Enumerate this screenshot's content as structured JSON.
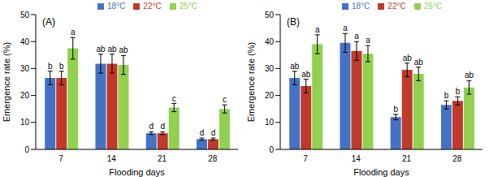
{
  "chart_data": [
    {
      "type": "bar",
      "title": "(A)",
      "x_label": "Flooding days",
      "y_label": "Emergence rate (%)",
      "categories": [
        "7",
        "14",
        "21",
        "28"
      ],
      "series": [
        {
          "name": "18°C",
          "color": "#4472c4",
          "values": [
            26.5,
            31.8,
            6,
            3.8
          ],
          "errors": [
            2.5,
            3.5,
            0.5,
            0.4
          ],
          "labels": [
            "b",
            "ab",
            "d",
            "d"
          ]
        },
        {
          "name": "22°C",
          "color": "#c0392b",
          "values": [
            26.5,
            31.8,
            6,
            3.8
          ],
          "errors": [
            2.5,
            3.5,
            0.5,
            0.4
          ],
          "labels": [
            "b",
            "ab",
            "d",
            "d"
          ]
        },
        {
          "name": "25°C",
          "color": "#92d050",
          "values": [
            37.5,
            31.3,
            15.5,
            15
          ],
          "errors": [
            4,
            3.5,
            1.5,
            1.5
          ],
          "labels": [
            "a",
            "ab",
            "c",
            "c"
          ]
        }
      ],
      "ylim": [
        0,
        50
      ],
      "yticks": [
        0,
        10,
        20,
        30,
        40,
        50
      ],
      "grid": false,
      "legend": "top"
    },
    {
      "type": "bar",
      "title": "(B)",
      "x_label": "Flooding days",
      "y_label": "Emergence rate (%)",
      "categories": [
        "7",
        "14",
        "21",
        "28"
      ],
      "series": [
        {
          "name": "18°C",
          "color": "#4472c4",
          "values": [
            26.5,
            39.5,
            12,
            16.5
          ],
          "errors": [
            2.5,
            3.5,
            1,
            1.5
          ],
          "labels": [
            "ab",
            "a",
            "b",
            "b"
          ]
        },
        {
          "name": "22°C",
          "color": "#c0392b",
          "values": [
            23.5,
            36.5,
            29.5,
            18
          ],
          "errors": [
            2.5,
            3.5,
            2.5,
            1.5
          ],
          "labels": [
            "ab",
            "a",
            "ab",
            "b"
          ]
        },
        {
          "name": "25°C",
          "color": "#92d050",
          "values": [
            39,
            35.5,
            28,
            23
          ],
          "errors": [
            3.5,
            3,
            2.5,
            2.5
          ],
          "labels": [
            "a",
            "a",
            "ab",
            "ab"
          ]
        }
      ],
      "ylim": [
        0,
        50
      ],
      "yticks": [
        0,
        10,
        20,
        30,
        40,
        50
      ],
      "grid": false,
      "legend": "top"
    }
  ]
}
